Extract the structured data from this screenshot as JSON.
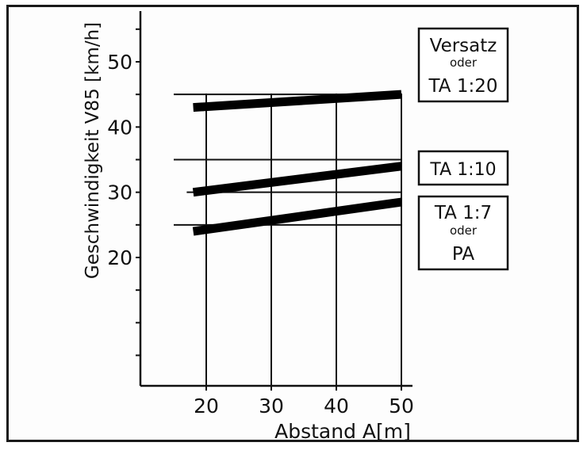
{
  "chart_data": {
    "type": "line",
    "xlabel": "Abstand A[m]",
    "ylabel": "Geschwindigkeit V85 [km/h]",
    "x_ticks": [
      "20",
      "30",
      "40",
      "50"
    ],
    "y_ticks": [
      "20",
      "30",
      "40",
      "50"
    ],
    "xlim": [
      10,
      52
    ],
    "ylim": [
      0,
      57
    ],
    "grid": "vertical",
    "reference_lines": [
      {
        "y": 45,
        "x_start": 15,
        "x_end": 50
      },
      {
        "y": 35,
        "x_start": 15,
        "x_end": 50
      },
      {
        "y": 30,
        "x_start": 17,
        "x_end": 50
      },
      {
        "y": 25,
        "x_start": 15,
        "x_end": 50
      }
    ],
    "series": [
      {
        "name": "Versatz oder TA 1:20",
        "x": [
          18,
          50
        ],
        "values": [
          43,
          45
        ],
        "label_lines": [
          "Versatz",
          "oder",
          "TA 1:20"
        ]
      },
      {
        "name": "TA 1:10",
        "x": [
          18,
          50
        ],
        "values": [
          30,
          34
        ],
        "label_lines": [
          "TA 1:10"
        ]
      },
      {
        "name": "TA 1:7 oder PA",
        "x": [
          18,
          50
        ],
        "values": [
          24,
          28.5
        ],
        "label_lines": [
          "TA 1:7",
          "oder",
          "PA"
        ]
      }
    ]
  }
}
